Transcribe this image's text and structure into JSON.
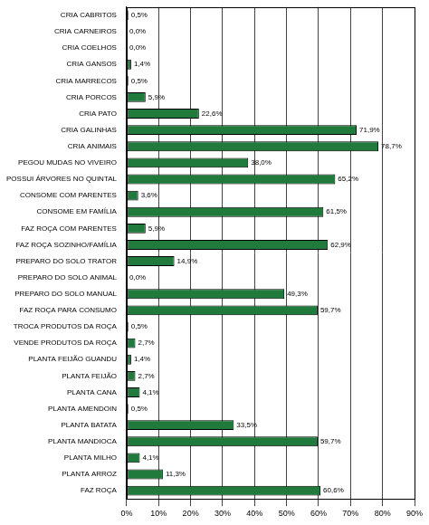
{
  "chart_data": {
    "type": "bar",
    "orientation": "horizontal",
    "categories": [
      "CRIA CABRITOS",
      "CRIA CARNEIROS",
      "CRIA COELHOS",
      "CRIA GANSOS",
      "CRIA MARRECOS",
      "CRIA PORCOS",
      "CRIA PATO",
      "CRIA GALINHAS",
      "CRIA ANIMAIS",
      "PEGOU MUDAS NO VIVEIRO",
      "POSSUI ÁRVORES NO QUINTAL",
      "CONSOME COM PARENTES",
      "CONSOME EM FAMÍLIA",
      "FAZ ROÇA COM PARENTES",
      "FAZ ROÇA SOZINHO/FAMÍLIA",
      "PREPARO DO SOLO TRATOR",
      "PREPARO DO SOLO ANIMAL",
      "PREPARO DO SOLO MANUAL",
      "FAZ ROÇA PARA CONSUMO",
      "TROCA PRODUTOS DA ROÇA",
      "VENDE PRODUTOS DA ROÇA",
      "PLANTA FEIJÃO GUANDU",
      "PLANTA FEIJÃO",
      "PLANTA CANA",
      "PLANTA AMENDOIN",
      "PLANTA BATATA",
      "PLANTA MANDIOCA",
      "PLANTA MILHO",
      "PLANTA ARROZ",
      "FAZ ROÇA"
    ],
    "values": [
      0.5,
      0.0,
      0.0,
      1.4,
      0.5,
      5.9,
      22.6,
      71.9,
      78.7,
      38.0,
      65.2,
      3.6,
      61.5,
      5.9,
      62.9,
      14.9,
      0.0,
      49.3,
      59.7,
      0.5,
      2.7,
      1.4,
      2.7,
      4.1,
      0.5,
      33.5,
      59.7,
      4.1,
      11.3,
      60.6
    ],
    "value_labels": [
      "0,5%",
      "0,0%",
      "0,0%",
      "1,4%",
      "0,5%",
      "5,9%",
      "22,6%",
      "71,9%",
      "78,7%",
      "38,0%",
      "65,2%",
      "3,6%",
      "61,5%",
      "5,9%",
      "62,9%",
      "14,9%",
      "0,0%",
      "49,3%",
      "59,7%",
      "0,5%",
      "2,7%",
      "1,4%",
      "2,7%",
      "4,1%",
      "0,5%",
      "33,5%",
      "59,7%",
      "4,1%",
      "11,3%",
      "60,6%"
    ],
    "data_labels": true,
    "color": "#1f7a3c",
    "xlim": [
      0,
      90
    ],
    "xticks": [
      {
        "value": 0,
        "label": "0%"
      },
      {
        "value": 10,
        "label": "10%"
      },
      {
        "value": 20,
        "label": "20%"
      },
      {
        "value": 30,
        "label": "30%"
      },
      {
        "value": 40,
        "label": "40%"
      },
      {
        "value": 50,
        "label": "50%"
      },
      {
        "value": 60,
        "label": "60%"
      },
      {
        "value": 70,
        "label": "70%"
      },
      {
        "value": 80,
        "label": "80%"
      },
      {
        "value": 90,
        "label": "90%"
      }
    ],
    "grid": true
  }
}
